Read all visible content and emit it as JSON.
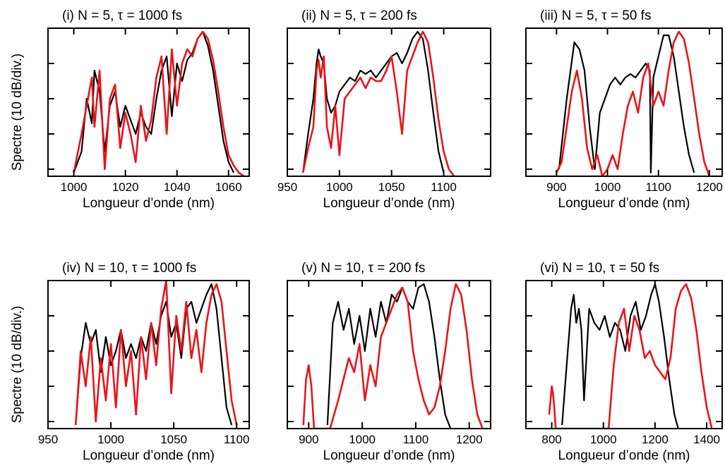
{
  "ylabel_text": "Spectre (10 dB/div.)",
  "colors": {
    "series_a": "#000000",
    "series_b": "#e8141b"
  },
  "chart_data": [
    {
      "type": "line",
      "title": "(i) N = 5, τ = 1000 fs",
      "xlabel": "Longueur d’onde (nm)",
      "ylabel": "Spectre (10 dB/div.)",
      "xlim": [
        990,
        1068
      ],
      "xticks": [
        1000,
        1020,
        1040,
        1060
      ],
      "ylim": [
        -42,
        0
      ],
      "yticks_db": [
        -40,
        -30,
        -20,
        -10,
        0
      ],
      "grid": false,
      "series": [
        {
          "color": "#000000",
          "x": [
            1000,
            1003,
            1005,
            1007,
            1008,
            1010,
            1012,
            1014,
            1016,
            1018,
            1020,
            1022,
            1024,
            1026,
            1028,
            1030,
            1032,
            1034,
            1036,
            1038,
            1040,
            1042,
            1044,
            1046,
            1048,
            1050,
            1052,
            1054,
            1056,
            1058,
            1060,
            1062
          ],
          "y": [
            -41,
            -35,
            -20,
            -27,
            -12,
            -18,
            -35,
            -22,
            -18,
            -28,
            -22,
            -26,
            -30,
            -24,
            -28,
            -30,
            -20,
            -12,
            -8,
            -25,
            -10,
            -15,
            -9,
            -7,
            -3,
            -1,
            -5,
            -12,
            -22,
            -32,
            -38,
            -41
          ]
        },
        {
          "color": "#e8141b",
          "x": [
            1000,
            1003,
            1005,
            1007,
            1008,
            1010,
            1012,
            1014,
            1016,
            1018,
            1020,
            1022,
            1024,
            1026,
            1028,
            1030,
            1032,
            1034,
            1036,
            1038,
            1040,
            1042,
            1044,
            1046,
            1048,
            1050,
            1052,
            1054,
            1056,
            1058,
            1060,
            1062,
            1064,
            1066
          ],
          "y": [
            -41,
            -30,
            -22,
            -14,
            -28,
            -12,
            -40,
            -20,
            -16,
            -34,
            -24,
            -30,
            -38,
            -22,
            -32,
            -26,
            -14,
            -8,
            -30,
            -6,
            -22,
            -10,
            -6,
            -8,
            -3,
            -1,
            -3,
            -9,
            -18,
            -28,
            -36,
            -39,
            -41,
            -42
          ]
        }
      ]
    },
    {
      "type": "line",
      "title": "(ii) N = 5, τ = 200 fs",
      "xlabel": "Longueur d’onde (nm)",
      "ylabel": "",
      "xlim": [
        950,
        1145
      ],
      "xticks": [
        950,
        1000,
        1050,
        1100
      ],
      "ylim": [
        -42,
        0
      ],
      "yticks_db": [
        -40,
        -30,
        -20,
        -10,
        0
      ],
      "grid": false,
      "series": [
        {
          "color": "#000000",
          "x": [
            965,
            970,
            975,
            978,
            980,
            982,
            985,
            988,
            992,
            996,
            1000,
            1005,
            1010,
            1015,
            1020,
            1025,
            1030,
            1035,
            1040,
            1045,
            1050,
            1055,
            1060,
            1065,
            1070,
            1075,
            1080,
            1085,
            1090,
            1095,
            1100
          ],
          "y": [
            -41,
            -30,
            -20,
            -10,
            -6,
            -8,
            -10,
            -20,
            -24,
            -22,
            -18,
            -16,
            -14,
            -15,
            -12,
            -13,
            -12,
            -14,
            -12,
            -10,
            -8,
            -7,
            -10,
            -7,
            -3,
            -1,
            -3,
            -12,
            -24,
            -35,
            -41
          ]
        },
        {
          "color": "#e8141b",
          "x": [
            965,
            970,
            975,
            978,
            980,
            982,
            985,
            988,
            992,
            996,
            1000,
            1005,
            1010,
            1015,
            1020,
            1025,
            1030,
            1035,
            1040,
            1045,
            1050,
            1055,
            1060,
            1065,
            1070,
            1075,
            1080,
            1085,
            1090,
            1095,
            1100,
            1105,
            1110
          ],
          "y": [
            -41,
            -34,
            -28,
            -12,
            -9,
            -14,
            -8,
            -28,
            -34,
            -22,
            -36,
            -20,
            -18,
            -16,
            -14,
            -17,
            -14,
            -15,
            -15,
            -12,
            -8,
            -18,
            -30,
            -12,
            -8,
            -4,
            -1,
            -4,
            -14,
            -26,
            -35,
            -40,
            -42
          ]
        }
      ]
    },
    {
      "type": "line",
      "title": "(iii) N = 5, τ = 50 fs",
      "xlabel": "Longueur d’onde (nm)",
      "ylabel": "",
      "xlim": [
        840,
        1225
      ],
      "xticks": [
        900,
        1000,
        1100,
        1200
      ],
      "ylim": [
        -42,
        0
      ],
      "yticks_db": [
        -40,
        -30,
        -20,
        -10,
        0
      ],
      "grid": false,
      "series": [
        {
          "color": "#000000",
          "x": [
            905,
            920,
            935,
            945,
            955,
            965,
            975,
            985,
            995,
            1005,
            1015,
            1025,
            1035,
            1045,
            1055,
            1065,
            1075,
            1083,
            1085,
            1090,
            1100,
            1110,
            1120,
            1130,
            1140,
            1150,
            1160,
            1170
          ],
          "y": [
            -40,
            -20,
            -4,
            -6,
            -12,
            -28,
            -40,
            -24,
            -20,
            -16,
            -14,
            -16,
            -14,
            -13,
            -14,
            -12,
            -10,
            -12,
            -41,
            -14,
            -8,
            -2,
            -2,
            -8,
            -18,
            -28,
            -36,
            -41
          ]
        },
        {
          "color": "#e8141b",
          "x": [
            900,
            910,
            920,
            930,
            940,
            950,
            960,
            970,
            980,
            990,
            1000,
            1010,
            1020,
            1030,
            1040,
            1050,
            1060,
            1070,
            1080,
            1090,
            1100,
            1110,
            1120,
            1130,
            1140,
            1150,
            1160,
            1170,
            1180,
            1190,
            1200
          ],
          "y": [
            -41,
            -38,
            -28,
            -18,
            -12,
            -20,
            -34,
            -40,
            -36,
            -42,
            -40,
            -36,
            -40,
            -30,
            -22,
            -18,
            -24,
            -14,
            -10,
            -22,
            -18,
            -22,
            -12,
            -4,
            -1,
            -3,
            -10,
            -20,
            -30,
            -38,
            -42
          ]
        }
      ]
    },
    {
      "type": "line",
      "title": "(iv) N = 10, τ = 1000 fs",
      "xlabel": "Longueur d’onde (nm)",
      "ylabel": "Spectre (10 dB/div.)",
      "xlim": [
        950,
        1110
      ],
      "xticks": [
        950,
        1000,
        1050,
        1100
      ],
      "ylim": [
        -42,
        0
      ],
      "yticks_db": [
        -40,
        -30,
        -20,
        -10,
        0
      ],
      "grid": false,
      "series": [
        {
          "color": "#000000",
          "x": [
            972,
            976,
            980,
            984,
            988,
            992,
            996,
            1000,
            1004,
            1008,
            1012,
            1016,
            1020,
            1024,
            1028,
            1032,
            1036,
            1040,
            1044,
            1048,
            1052,
            1056,
            1060,
            1064,
            1068,
            1072,
            1076,
            1080,
            1084,
            1088,
            1092,
            1096
          ],
          "y": [
            -41,
            -22,
            -12,
            -18,
            -14,
            -26,
            -16,
            -24,
            -20,
            -14,
            -22,
            -18,
            -22,
            -16,
            -20,
            -12,
            -18,
            -10,
            -6,
            -16,
            -12,
            -22,
            -8,
            -6,
            -12,
            -8,
            -4,
            -1,
            -8,
            -22,
            -36,
            -41
          ]
        },
        {
          "color": "#e8141b",
          "x": [
            972,
            976,
            980,
            984,
            988,
            992,
            996,
            1000,
            1004,
            1008,
            1012,
            1016,
            1020,
            1024,
            1028,
            1032,
            1036,
            1040,
            1044,
            1048,
            1052,
            1056,
            1060,
            1064,
            1068,
            1072,
            1076,
            1080,
            1084,
            1088,
            1092,
            1096,
            1100
          ],
          "y": [
            -41,
            -20,
            -30,
            -16,
            -40,
            -22,
            -34,
            -18,
            -36,
            -14,
            -30,
            -20,
            -38,
            -16,
            -28,
            -12,
            -24,
            -8,
            0,
            -32,
            -10,
            -20,
            -6,
            -22,
            -14,
            -26,
            -12,
            -4,
            -1,
            -6,
            -20,
            -34,
            -41
          ]
        }
      ]
    },
    {
      "type": "line",
      "title": "(v) N = 10, τ = 200 fs",
      "xlabel": "Longueur d’onde (nm)",
      "ylabel": "",
      "xlim": [
        860,
        1240
      ],
      "xticks": [
        900,
        1000,
        1100,
        1200
      ],
      "ylim": [
        -42,
        0
      ],
      "yticks_db": [
        -40,
        -30,
        -20,
        -10,
        0
      ],
      "grid": false,
      "series": [
        {
          "color": "#000000",
          "x": [
            935,
            945,
            955,
            965,
            975,
            985,
            995,
            1005,
            1015,
            1025,
            1035,
            1045,
            1055,
            1065,
            1075,
            1085,
            1095,
            1105,
            1115,
            1125,
            1135,
            1145,
            1155,
            1165
          ],
          "y": [
            -41,
            -12,
            -6,
            -14,
            -8,
            -18,
            -10,
            -20,
            -8,
            -16,
            -6,
            -12,
            -4,
            -6,
            -2,
            -6,
            -8,
            -2,
            -1,
            -6,
            -16,
            -28,
            -38,
            -42
          ]
        },
        {
          "color": "#e8141b",
          "x": [
            890,
            895,
            900,
            905,
            910,
            915,
            925,
            940,
            955,
            965,
            975,
            985,
            995,
            1005,
            1015,
            1025,
            1035,
            1045,
            1055,
            1065,
            1075,
            1085,
            1095,
            1105,
            1115,
            1125,
            1135,
            1145,
            1155,
            1165,
            1175,
            1185,
            1195,
            1205,
            1215,
            1225
          ],
          "y": [
            -41,
            -28,
            -24,
            -30,
            -42,
            -42,
            -42,
            -42,
            -34,
            -28,
            -22,
            -26,
            -18,
            -34,
            -24,
            -30,
            -16,
            -12,
            -8,
            -4,
            -2,
            -6,
            -20,
            -28,
            -34,
            -38,
            -36,
            -30,
            -20,
            -8,
            -1,
            -4,
            -14,
            -28,
            -38,
            -42
          ]
        }
      ]
    },
    {
      "type": "line",
      "title": "(vi) N = 10, τ = 50 fs",
      "xlabel": "Longueur d’onde (nm)",
      "ylabel": "",
      "xlim": [
        700,
        1460
      ],
      "xticks": [
        800,
        1000,
        1200,
        1400
      ],
      "ylim": [
        -42,
        0
      ],
      "yticks_db": [
        -40,
        -30,
        -20,
        -10,
        0
      ],
      "grid": false,
      "series": [
        {
          "color": "#000000",
          "x": [
            840,
            860,
            875,
            885,
            895,
            905,
            915,
            925,
            945,
            965,
            985,
            1005,
            1025,
            1045,
            1065,
            1085,
            1105,
            1125,
            1145,
            1165,
            1185,
            1200,
            1215,
            1235,
            1255,
            1275,
            1290
          ],
          "y": [
            -41,
            -22,
            -8,
            -4,
            -12,
            -8,
            -14,
            -34,
            -8,
            -12,
            -14,
            -10,
            -16,
            -12,
            -14,
            -20,
            -10,
            -6,
            -14,
            -10,
            -4,
            -1,
            -6,
            -16,
            -28,
            -38,
            -42
          ]
        },
        {
          "color": "#e8141b",
          "x": [
            790,
            795,
            800,
            805,
            810,
            815,
            1020,
            1040,
            1060,
            1080,
            1100,
            1120,
            1140,
            1160,
            1180,
            1200,
            1220,
            1240,
            1260,
            1280,
            1300,
            1320,
            1340,
            1360,
            1380,
            1400,
            1420
          ],
          "y": [
            -38,
            -34,
            -30,
            -32,
            -36,
            -42,
            -42,
            -24,
            -12,
            -8,
            -20,
            -10,
            -14,
            -22,
            -20,
            -24,
            -26,
            -28,
            -22,
            -8,
            -3,
            -1,
            -5,
            -14,
            -26,
            -36,
            -42
          ]
        }
      ]
    }
  ]
}
